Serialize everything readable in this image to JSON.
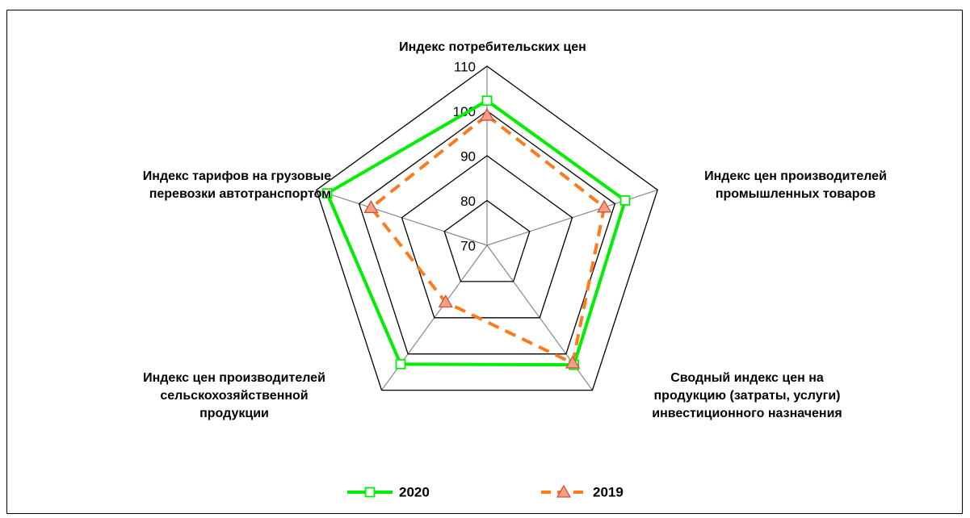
{
  "chart_data": {
    "type": "radar",
    "categories": [
      "Индекс потребительских цен",
      "Индекс цен производителей\nпромышленных товаров",
      "Сводный индекс цен на\nпродукцию (затраты, услуги)\nинвестиционного назначения",
      "Индекс цен производителей\nсельскохозяйственной\nпродукции",
      "Индекс тарифов на грузовые\nперевозки автотранспортом"
    ],
    "series": [
      {
        "name": "2020",
        "color": "#00ee00",
        "values": [
          102.3,
          102.4,
          103,
          102.8,
          107.5
        ]
      },
      {
        "name": "2019",
        "color": "#ff7a1a",
        "values": [
          99,
          97.5,
          102.5,
          85.7,
          97.2
        ]
      }
    ],
    "ylim": [
      70,
      110
    ],
    "yticks": [
      70,
      80,
      90,
      100,
      110
    ],
    "grid": true,
    "legend": "bottom"
  }
}
